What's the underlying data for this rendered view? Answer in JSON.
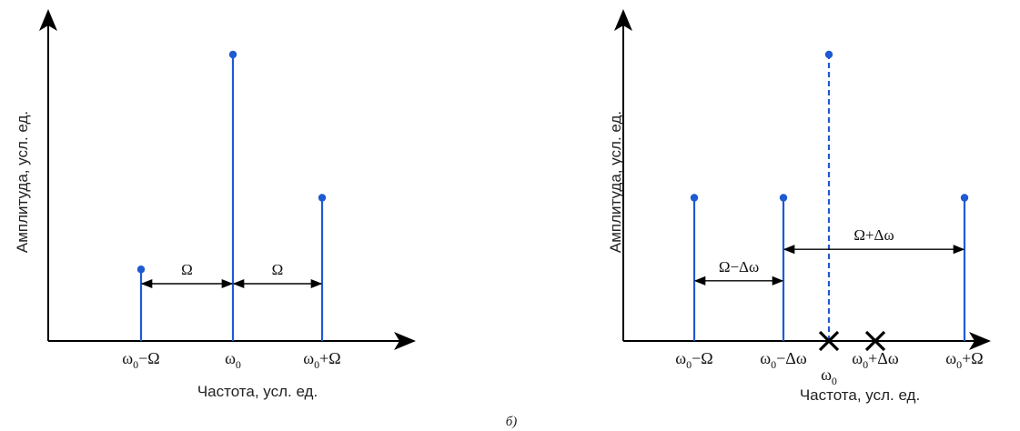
{
  "caption": "б)",
  "colors": {
    "stem": "#1e5ad2",
    "axis": "#000000",
    "arrow": "#000000",
    "cross": "#000000"
  },
  "chart_data": [
    {
      "type": "stem",
      "xlabel": "Частота, усл. ед.",
      "ylabel": "Амплитуда, усл. ед.",
      "y_range": [
        0,
        1
      ],
      "grid": false,
      "ticks": [
        {
          "x": 1,
          "main": "ω",
          "sub": "0",
          "tail": "−Ω"
        },
        {
          "x": 2,
          "main": "ω",
          "sub": "0",
          "tail": ""
        },
        {
          "x": 3,
          "main": "ω",
          "sub": "0",
          "tail": "+Ω"
        }
      ],
      "stems": [
        {
          "x": 1,
          "y": 0.25,
          "style": "solid"
        },
        {
          "x": 2,
          "y": 1.0,
          "style": "solid"
        },
        {
          "x": 3,
          "y": 0.5,
          "style": "solid"
        }
      ],
      "crosses": [],
      "intervals": [
        {
          "from": 1,
          "to": 2,
          "y": 0.2,
          "label": "Ω"
        },
        {
          "from": 2,
          "to": 3,
          "y": 0.2,
          "label": "Ω"
        }
      ]
    },
    {
      "type": "stem",
      "xlabel": "Частота, усл. ед.",
      "ylabel": "Амплитуда, усл. ед.",
      "y_range": [
        0,
        1
      ],
      "grid": false,
      "ticks": [
        {
          "x": 1,
          "main": "ω",
          "sub": "0",
          "tail": "−Ω"
        },
        {
          "x": 2,
          "main": "ω",
          "sub": "0",
          "tail": "−Δω"
        },
        {
          "x": 2.5,
          "main": "ω",
          "sub": "0",
          "tail": "",
          "low": true
        },
        {
          "x": 3,
          "main": "ω",
          "sub": "0",
          "tail": "+Δω"
        },
        {
          "x": 4,
          "main": "ω",
          "sub": "0",
          "tail": "+Ω"
        }
      ],
      "stems": [
        {
          "x": 1,
          "y": 0.5,
          "style": "solid"
        },
        {
          "x": 2,
          "y": 0.5,
          "style": "solid"
        },
        {
          "x": 2.5,
          "y": 1.0,
          "style": "dashed"
        },
        {
          "x": 4,
          "y": 0.5,
          "style": "solid"
        }
      ],
      "crosses": [
        2.5,
        3
      ],
      "intervals": [
        {
          "from": 1,
          "to": 2,
          "y": 0.21,
          "label": "Ω−Δω"
        },
        {
          "from": 2,
          "to": 4,
          "y": 0.32,
          "label": "Ω+Δω"
        }
      ]
    }
  ]
}
